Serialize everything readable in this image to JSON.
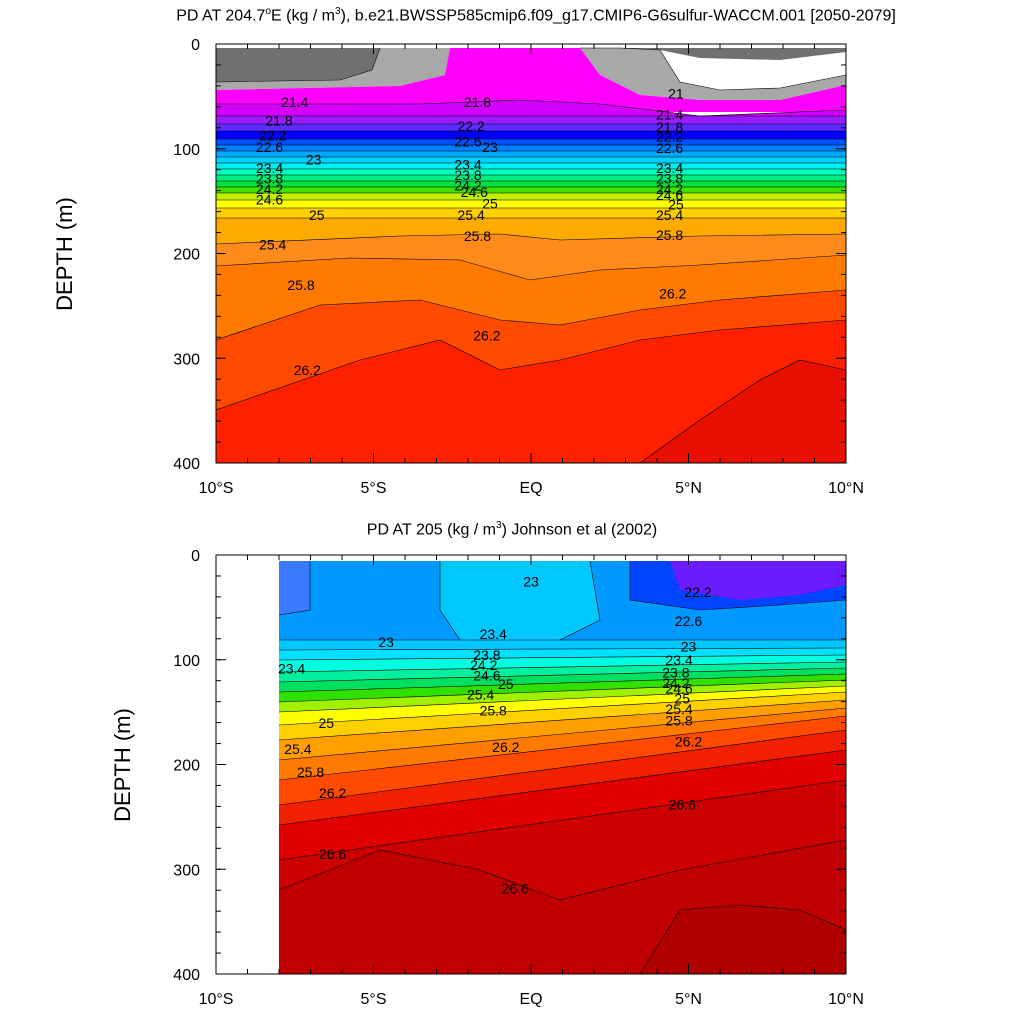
{
  "chart_data": [
    {
      "type": "contour",
      "title_main": "PD AT 204.7",
      "title_unit": "E (kg / m",
      "title_sup": "3",
      "title_rest": "), b.e21.BWSSP585cmip6.f09_g17.CMIP6-G6sulfur-WACCM.001 [2050-2079]",
      "ylabel": "DEPTH (m)",
      "x_ticks": [
        "10°S",
        "5°S",
        "EQ",
        "5°N",
        "10°N"
      ],
      "x_tick_values": [
        -10,
        -5,
        0,
        5,
        10
      ],
      "y_ticks": [
        "0",
        "100",
        "200",
        "300",
        "400"
      ],
      "y_tick_values": [
        0,
        100,
        200,
        300,
        400
      ],
      "xlim": [
        -10,
        10
      ],
      "ylim": [
        0,
        400
      ],
      "contour_levels": [
        21,
        21.2,
        21.4,
        21.6,
        21.8,
        22,
        22.2,
        22.4,
        22.6,
        22.8,
        23,
        23.2,
        23.4,
        23.6,
        23.8,
        24,
        24.2,
        24.4,
        24.6,
        24.8,
        25,
        25.2,
        25.4,
        25.6,
        25.8,
        26,
        26.2,
        26.4,
        26.6,
        26.8
      ],
      "labels": [
        {
          "text": "21.4",
          "lat": -7.5,
          "depth": 60
        },
        {
          "text": "21.8",
          "lat": -8.0,
          "depth": 78
        },
        {
          "text": "22.2",
          "lat": -8.2,
          "depth": 92
        },
        {
          "text": "22.6",
          "lat": -8.3,
          "depth": 103
        },
        {
          "text": "23",
          "lat": -6.9,
          "depth": 115
        },
        {
          "text": "23.4",
          "lat": -8.3,
          "depth": 123
        },
        {
          "text": "23.8",
          "lat": -8.3,
          "depth": 133
        },
        {
          "text": "24.2",
          "lat": -8.3,
          "depth": 143
        },
        {
          "text": "24.6",
          "lat": -8.3,
          "depth": 153
        },
        {
          "text": "25",
          "lat": -6.8,
          "depth": 168
        },
        {
          "text": "25.4",
          "lat": -8.2,
          "depth": 196
        },
        {
          "text": "25.8",
          "lat": -7.3,
          "depth": 235
        },
        {
          "text": "26.2",
          "lat": -7.1,
          "depth": 316
        },
        {
          "text": "21.8",
          "lat": -1.7,
          "depth": 60
        },
        {
          "text": "22.2",
          "lat": -1.9,
          "depth": 83
        },
        {
          "text": "22.6",
          "lat": -2.0,
          "depth": 98
        },
        {
          "text": "23",
          "lat": -1.3,
          "depth": 103
        },
        {
          "text": "23.4",
          "lat": -2.0,
          "depth": 120
        },
        {
          "text": "23.8",
          "lat": -2.0,
          "depth": 130
        },
        {
          "text": "24.2",
          "lat": -2.0,
          "depth": 140
        },
        {
          "text": "24.6",
          "lat": -1.8,
          "depth": 146
        },
        {
          "text": "25",
          "lat": -1.3,
          "depth": 157
        },
        {
          "text": "25.4",
          "lat": -1.9,
          "depth": 168
        },
        {
          "text": "25.8",
          "lat": -1.7,
          "depth": 188
        },
        {
          "text": "26.2",
          "lat": -1.4,
          "depth": 283
        },
        {
          "text": "21",
          "lat": 4.6,
          "depth": 52
        },
        {
          "text": "21.4",
          "lat": 4.4,
          "depth": 72
        },
        {
          "text": "21.8",
          "lat": 4.4,
          "depth": 84
        },
        {
          "text": "22.2",
          "lat": 4.4,
          "depth": 93
        },
        {
          "text": "22.6",
          "lat": 4.4,
          "depth": 104
        },
        {
          "text": "23.4",
          "lat": 4.4,
          "depth": 123
        },
        {
          "text": "23.8",
          "lat": 4.4,
          "depth": 133
        },
        {
          "text": "24.2",
          "lat": 4.4,
          "depth": 143
        },
        {
          "text": "24.6",
          "lat": 4.4,
          "depth": 149
        },
        {
          "text": "25",
          "lat": 4.6,
          "depth": 158
        },
        {
          "text": "25.4",
          "lat": 4.4,
          "depth": 168
        },
        {
          "text": "25.8",
          "lat": 4.4,
          "depth": 187
        },
        {
          "text": "26.2",
          "lat": 4.5,
          "depth": 243
        }
      ]
    },
    {
      "type": "contour",
      "title_main": "PD AT 205 (kg / m",
      "title_sup": "3",
      "title_rest": ") Johnson et al (2002)",
      "ylabel": "DEPTH (m)",
      "x_ticks": [
        "10°S",
        "5°S",
        "EQ",
        "5°N",
        "10°N"
      ],
      "x_tick_values": [
        -10,
        -5,
        0,
        5,
        10
      ],
      "y_ticks": [
        "0",
        "100",
        "200",
        "300",
        "400"
      ],
      "y_tick_values": [
        0,
        100,
        200,
        300,
        400
      ],
      "xlim": [
        -10,
        10
      ],
      "ylim": [
        0,
        400
      ],
      "data_lat_range": [
        -8,
        10
      ],
      "labels": [
        {
          "text": "23",
          "lat": 0.0,
          "depth": 30
        },
        {
          "text": "22.2",
          "lat": 5.3,
          "depth": 40
        },
        {
          "text": "22.6",
          "lat": 5.0,
          "depth": 68
        },
        {
          "text": "23",
          "lat": -4.6,
          "depth": 88
        },
        {
          "text": "23.4",
          "lat": -1.2,
          "depth": 80
        },
        {
          "text": "23",
          "lat": 5.0,
          "depth": 92
        },
        {
          "text": "23.4",
          "lat": -7.6,
          "depth": 113
        },
        {
          "text": "23.8",
          "lat": -1.4,
          "depth": 100
        },
        {
          "text": "24.2",
          "lat": -1.5,
          "depth": 110
        },
        {
          "text": "24.6",
          "lat": -1.4,
          "depth": 120
        },
        {
          "text": "25",
          "lat": -0.8,
          "depth": 128
        },
        {
          "text": "23.4",
          "lat": 4.7,
          "depth": 105
        },
        {
          "text": "23.8",
          "lat": 4.6,
          "depth": 117
        },
        {
          "text": "24.2",
          "lat": 4.6,
          "depth": 127
        },
        {
          "text": "24.6",
          "lat": 4.7,
          "depth": 132
        },
        {
          "text": "25",
          "lat": 4.8,
          "depth": 142
        },
        {
          "text": "25.4",
          "lat": -1.6,
          "depth": 138
        },
        {
          "text": "25.4",
          "lat": 4.7,
          "depth": 152
        },
        {
          "text": "25.8",
          "lat": -1.2,
          "depth": 153
        },
        {
          "text": "25.8",
          "lat": 4.7,
          "depth": 163
        },
        {
          "text": "25",
          "lat": -6.5,
          "depth": 165
        },
        {
          "text": "26.2",
          "lat": 5.0,
          "depth": 183
        },
        {
          "text": "25.4",
          "lat": -7.4,
          "depth": 190
        },
        {
          "text": "26.2",
          "lat": -0.8,
          "depth": 188
        },
        {
          "text": "25.8",
          "lat": -7.0,
          "depth": 212
        },
        {
          "text": "26.2",
          "lat": -6.3,
          "depth": 232
        },
        {
          "text": "26.6",
          "lat": 4.8,
          "depth": 243
        },
        {
          "text": "26.6",
          "lat": -6.3,
          "depth": 290
        },
        {
          "text": "26.6",
          "lat": -0.5,
          "depth": 323
        }
      ]
    }
  ]
}
